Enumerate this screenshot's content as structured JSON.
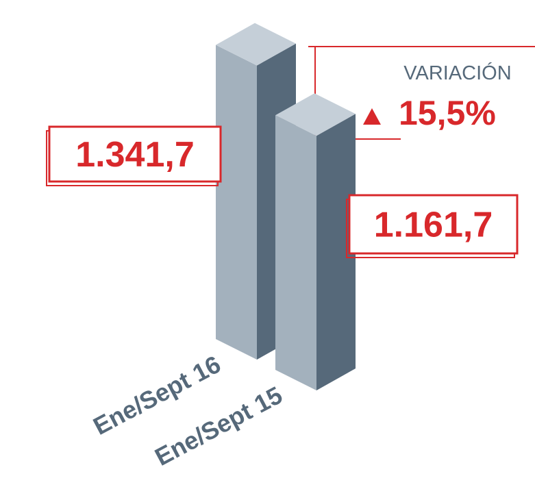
{
  "chart_data": {
    "type": "bar3d",
    "categories": [
      "Ene/Sept 16",
      "Ene/Sept 15"
    ],
    "values": [
      1341.7,
      1161.7
    ],
    "value_labels": [
      "1.341,7",
      "1.161,7"
    ],
    "annotation": {
      "title": "VARIACIÓN",
      "text": "15,5%"
    },
    "color": "#d8282b"
  }
}
